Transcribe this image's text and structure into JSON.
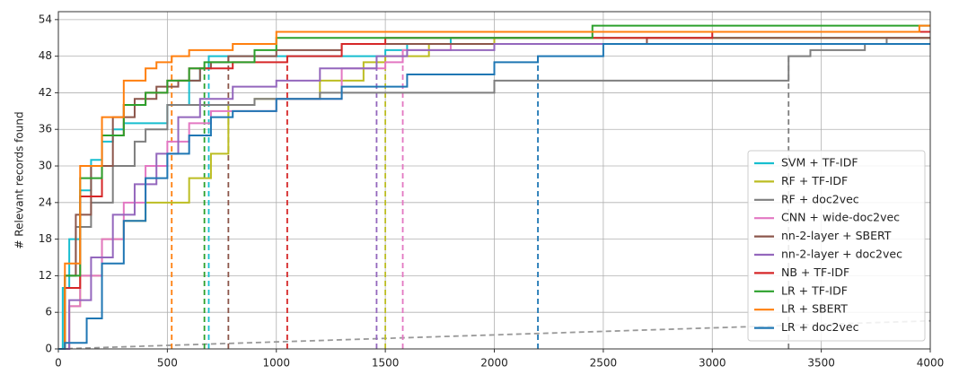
{
  "chart_data": {
    "type": "line",
    "drawstyle": "steps-post",
    "y_label": "# Relevant records found",
    "xlim": [
      0,
      4000
    ],
    "xticks": [
      0,
      500,
      1000,
      1500,
      2000,
      2500,
      3000,
      3500,
      4000
    ],
    "ylim": [
      0,
      55.3
    ],
    "yticks": [
      0,
      6,
      12,
      18,
      24,
      30,
      36,
      42,
      48,
      54
    ],
    "grid": true,
    "legend": "lower right",
    "baseline": {
      "color": "#999999",
      "x": [
        0,
        4000
      ],
      "values": [
        0,
        4.6
      ]
    },
    "series": [
      {
        "name": "SVM + TF-IDF",
        "color": "#17becf",
        "stop_x": 690,
        "x": [
          0,
          20,
          50,
          100,
          150,
          200,
          250,
          300,
          350,
          400,
          500,
          600,
          650,
          690,
          800,
          1400,
          1500,
          1600,
          1800,
          2000,
          4000
        ],
        "values": [
          0,
          10,
          18,
          26,
          31,
          34,
          36,
          37,
          37,
          37,
          40,
          44,
          46,
          48,
          48,
          48,
          49,
          50,
          51,
          51,
          51
        ]
      },
      {
        "name": "RF + TF-IDF",
        "color": "#bcbd22",
        "stop_x": 1500,
        "x": [
          0,
          50,
          100,
          200,
          300,
          400,
          500,
          600,
          700,
          780,
          900,
          1200,
          1400,
          1500,
          1700,
          2000,
          4000
        ],
        "values": [
          0,
          7,
          12,
          18,
          21,
          24,
          24,
          28,
          32,
          40,
          41,
          44,
          47,
          48,
          50,
          51,
          51
        ]
      },
      {
        "name": "RF + doc2vec",
        "color": "#7f7f7f",
        "stop_x": 3350,
        "x": [
          0,
          30,
          80,
          150,
          250,
          350,
          400,
          500,
          700,
          900,
          1200,
          2000,
          2400,
          3350,
          3450,
          3700,
          3800,
          4000
        ],
        "values": [
          0,
          12,
          20,
          24,
          30,
          34,
          36,
          40,
          40,
          41,
          42,
          44,
          44,
          48,
          49,
          50,
          51,
          51
        ]
      },
      {
        "name": "CNN + wide-doc2vec",
        "color": "#e377c2",
        "stop_x": 1580,
        "x": [
          0,
          50,
          100,
          200,
          300,
          400,
          500,
          600,
          700,
          800,
          1000,
          1300,
          1500,
          1580,
          1800,
          4000
        ],
        "values": [
          0,
          7,
          12,
          18,
          24,
          30,
          34,
          37,
          39,
          39,
          41,
          46,
          47,
          49,
          50,
          50
        ]
      },
      {
        "name": "nn-2-layer + SBERT",
        "color": "#8c564b",
        "stop_x": 780,
        "x": [
          0,
          30,
          80,
          150,
          250,
          350,
          450,
          550,
          650,
          700,
          780,
          1000,
          1300,
          2700,
          4000
        ],
        "values": [
          0,
          12,
          22,
          30,
          38,
          41,
          43,
          44,
          46,
          47,
          48,
          49,
          50,
          51,
          51
        ]
      },
      {
        "name": "nn-2-layer + doc2vec",
        "color": "#9467bd",
        "stop_x": 1460,
        "x": [
          0,
          50,
          150,
          250,
          350,
          450,
          550,
          650,
          800,
          1000,
          1200,
          1460,
          1600,
          2000,
          4000
        ],
        "values": [
          0,
          8,
          15,
          22,
          27,
          32,
          38,
          41,
          43,
          44,
          46,
          48,
          49,
          50,
          50
        ]
      },
      {
        "name": "NB + TF-IDF",
        "color": "#d62728",
        "stop_x": 1050,
        "x": [
          0,
          30,
          100,
          200,
          300,
          400,
          500,
          600,
          800,
          1050,
          1300,
          1500,
          3000,
          4000
        ],
        "values": [
          0,
          10,
          25,
          35,
          40,
          42,
          44,
          46,
          47,
          48,
          50,
          51,
          52,
          52
        ]
      },
      {
        "name": "LR + TF-IDF",
        "color": "#2ca02c",
        "stop_x": 670,
        "x": [
          0,
          30,
          100,
          200,
          300,
          400,
          500,
          600,
          670,
          900,
          1000,
          2450,
          4000
        ],
        "values": [
          0,
          12,
          28,
          35,
          40,
          42,
          44,
          46,
          47,
          49,
          51,
          53,
          53
        ]
      },
      {
        "name": "LR + SBERT",
        "color": "#ff7f0e",
        "stop_x": 520,
        "x": [
          0,
          30,
          100,
          200,
          300,
          400,
          450,
          520,
          600,
          800,
          1000,
          3950,
          4000
        ],
        "values": [
          0,
          14,
          30,
          38,
          44,
          46,
          47,
          48,
          49,
          50,
          52,
          53,
          53
        ]
      },
      {
        "name": "LR + doc2vec",
        "color": "#1f77b4",
        "stop_x": 2200,
        "x": [
          0,
          30,
          130,
          200,
          300,
          400,
          500,
          600,
          700,
          800,
          1000,
          1300,
          1600,
          2000,
          2200,
          2500,
          4000
        ],
        "values": [
          0,
          1,
          5,
          14,
          21,
          28,
          32,
          35,
          38,
          39,
          41,
          43,
          45,
          47,
          48,
          50,
          50
        ]
      }
    ]
  }
}
